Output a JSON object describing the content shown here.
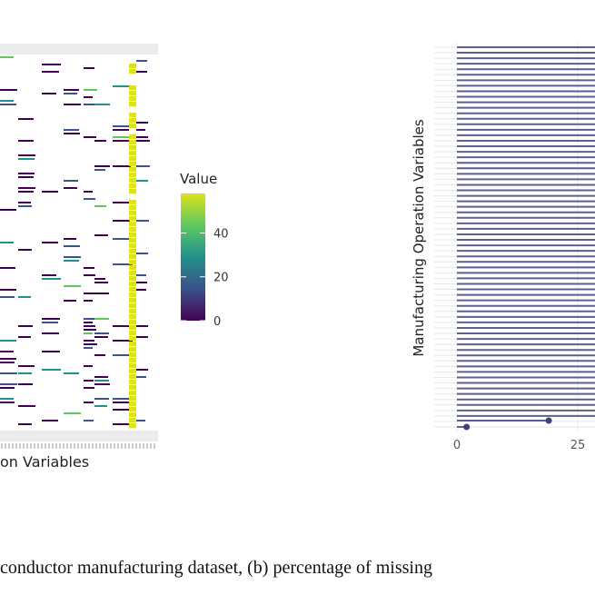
{
  "figure_caption": "conductor manufacturing dataset, (b) percentage of missing",
  "chart_data": [
    {
      "type": "heatmap",
      "xlabel": "on Variables",
      "colorbar": {
        "title": "Value",
        "ticks": [
          0,
          20,
          40
        ],
        "range": [
          0,
          58
        ],
        "colormap": "viridis",
        "colors": [
          "#440154",
          "#3b528b",
          "#21918c",
          "#5ec962",
          "#dce319"
        ]
      },
      "missing_color": "#ffffff",
      "grid": false
    },
    {
      "type": "lollipop",
      "ylabel": "Manufacturing Operation Variables",
      "x_ticks": [
        0,
        25
      ],
      "xlim": [
        0,
        42
      ],
      "n_variables": 70,
      "values_note": "all visible variables extend past the right edge except the bottom two",
      "bottom_values": [
        2,
        19
      ],
      "line_color": "#5b5f95",
      "point_color": "#3e4375",
      "grid": true
    }
  ]
}
